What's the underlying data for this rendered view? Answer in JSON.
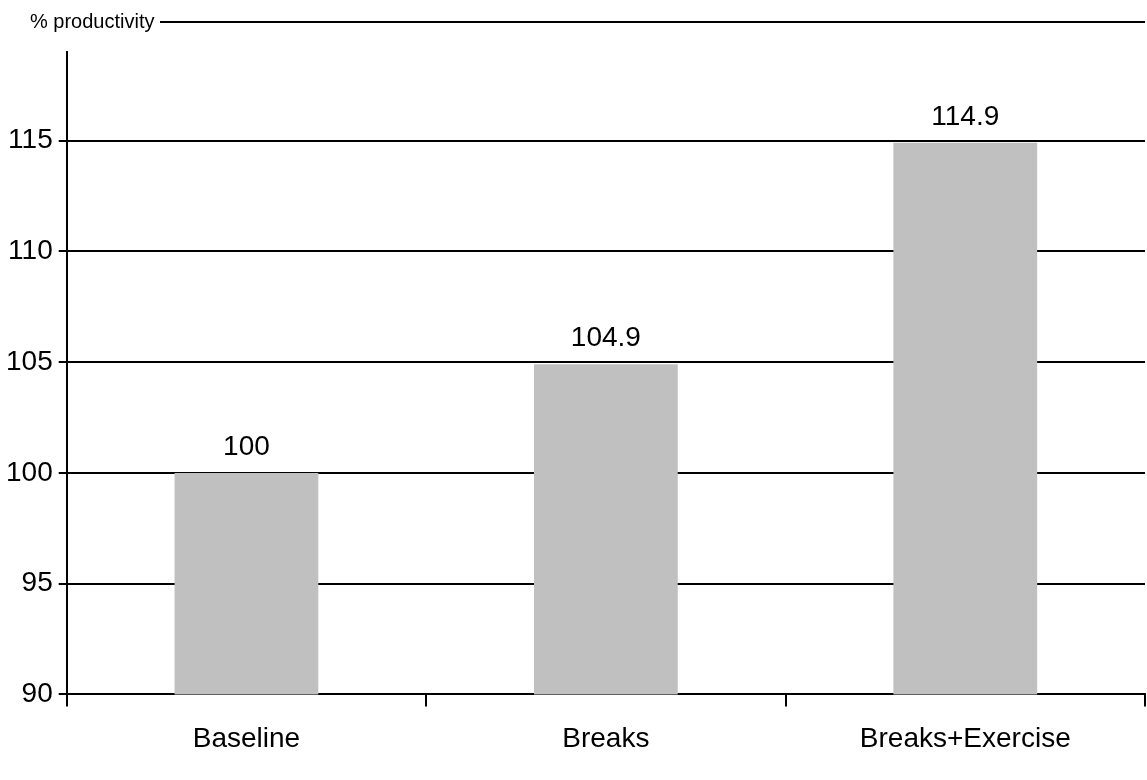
{
  "chart_data": {
    "type": "bar",
    "ylabel": "% productivity",
    "categories": [
      "Baseline",
      "Breaks",
      "Breaks+Exercise"
    ],
    "values": [
      100,
      104.9,
      114.9
    ],
    "color": "#c0c0c0",
    "ylim": [
      90,
      119
    ],
    "yticks": [
      90,
      95,
      100,
      105,
      110,
      115
    ],
    "grid": "y",
    "data_labels": true
  }
}
